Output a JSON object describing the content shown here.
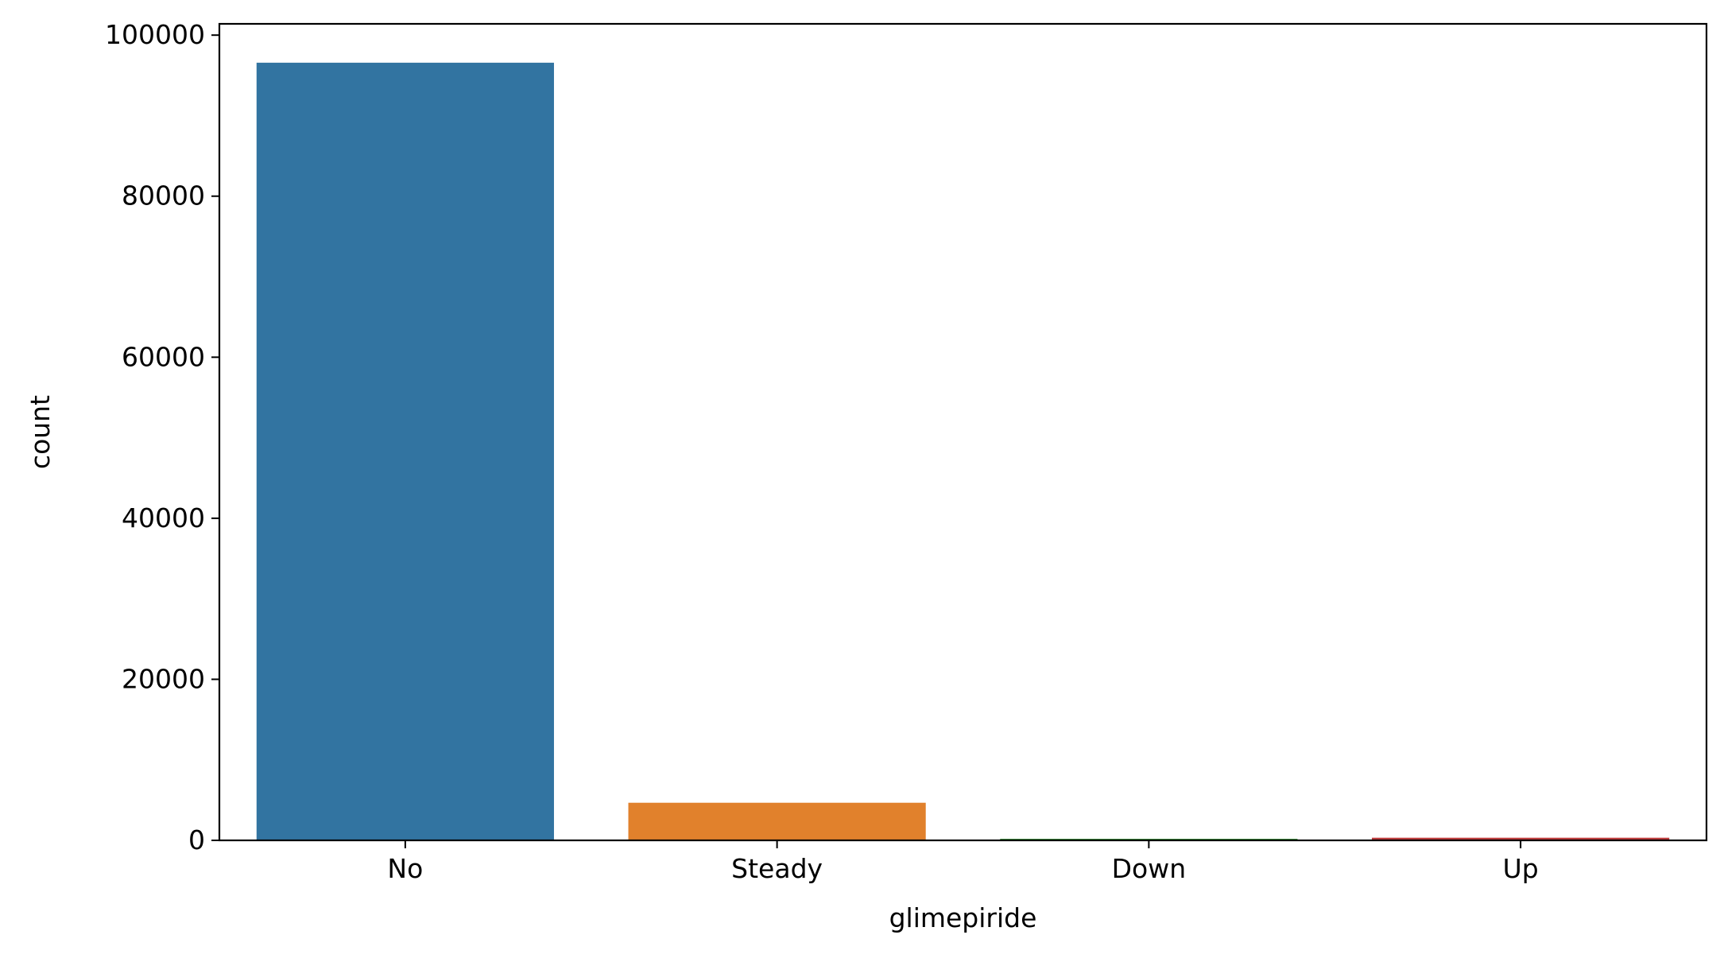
{
  "chart_data": {
    "type": "bar",
    "title": "",
    "xlabel": "glimepiride",
    "ylabel": "count",
    "categories": [
      "No",
      "Steady",
      "Down",
      "Up"
    ],
    "values": [
      96575,
      4670,
      194,
      327
    ],
    "colors": [
      "#3274a1",
      "#e1812c",
      "#3a923a",
      "#c03d3e"
    ],
    "ylim": [
      0,
      101400
    ],
    "yticks": [
      0,
      20000,
      40000,
      60000,
      80000,
      100000
    ],
    "ytick_labels": [
      "0",
      "20000",
      "40000",
      "60000",
      "80000",
      "100000"
    ],
    "grid": false,
    "legend": "none"
  }
}
